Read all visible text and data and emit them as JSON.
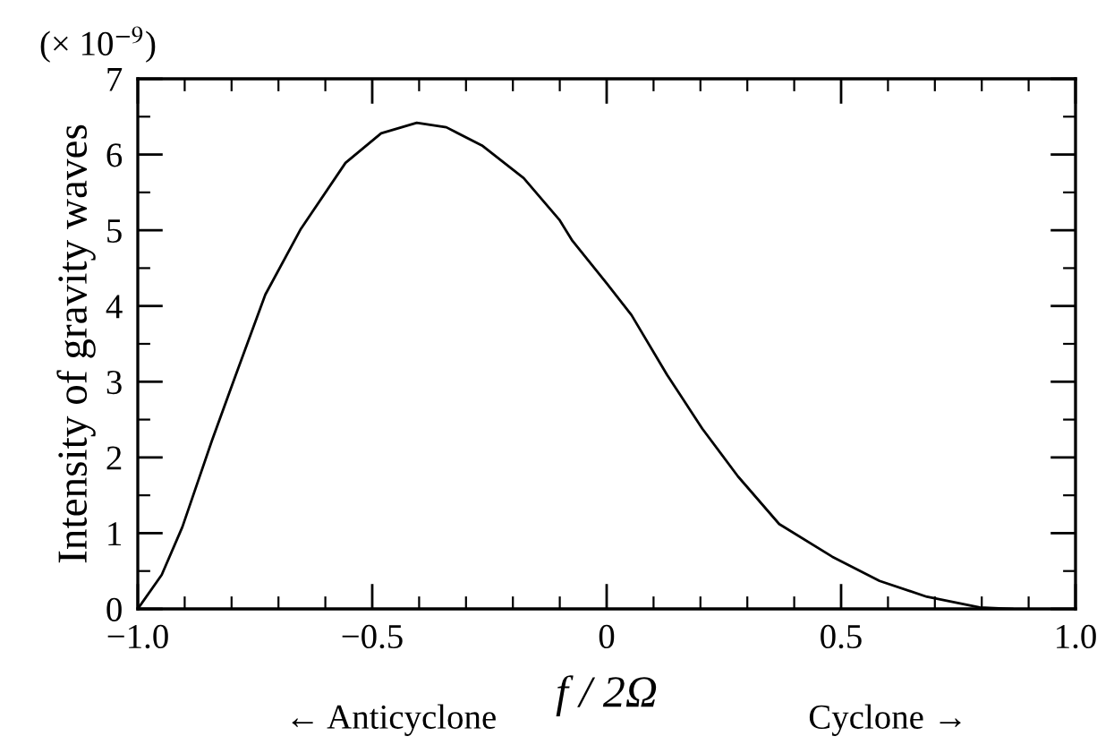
{
  "chart_data": {
    "type": "line",
    "ylabel": "Intensity of gravity waves",
    "xlabel": "f / 2Ω",
    "annotations": [
      "(× 10$^{−9}$)",
      "← Anticyclone",
      "Cyclone →"
    ],
    "series": [
      {
        "color": "#000000",
        "x": [
          -1.0,
          -0.949,
          -0.905,
          -0.842,
          -0.791,
          -0.728,
          -0.652,
          -0.557,
          -0.481,
          -0.405,
          -0.342,
          -0.266,
          -0.177,
          -0.101,
          -0.073,
          0.0,
          0.053,
          0.129,
          0.204,
          0.28,
          0.368,
          0.481,
          0.582,
          0.683,
          0.796,
          0.865
        ],
        "values": [
          0,
          0.45,
          1.08,
          2.22,
          3.09,
          4.15,
          5.02,
          5.89,
          6.28,
          6.42,
          6.36,
          6.12,
          5.69,
          5.14,
          4.86,
          4.3,
          3.88,
          3.09,
          2.38,
          1.75,
          1.12,
          0.69,
          0.37,
          0.16,
          0.02,
          0.0
        ]
      }
    ],
    "xlim": [
      -1.0,
      1.0
    ],
    "ylim": [
      0,
      7
    ],
    "xticks": [
      {
        "value": -1.0,
        "label": "−1.0"
      },
      {
        "value": -0.9,
        "label": null
      },
      {
        "value": -0.8,
        "label": null
      },
      {
        "value": -0.7,
        "label": null
      },
      {
        "value": -0.6,
        "label": null
      },
      {
        "value": -0.5,
        "label": "−0.5"
      },
      {
        "value": -0.4,
        "label": null
      },
      {
        "value": -0.3,
        "label": null
      },
      {
        "value": -0.2,
        "label": null
      },
      {
        "value": -0.1,
        "label": null
      },
      0,
      {
        "value": 0.1,
        "label": null
      },
      {
        "value": 0.2,
        "label": null
      },
      {
        "value": 0.3,
        "label": null
      },
      {
        "value": 0.4,
        "label": null
      },
      0.5,
      {
        "value": 0.6,
        "label": null
      },
      {
        "value": 0.7,
        "label": null
      },
      {
        "value": 0.8,
        "label": null
      },
      {
        "value": 0.9,
        "label": null
      },
      {
        "value": 1.0,
        "label": "1.0"
      }
    ],
    "yticks": [
      0,
      {
        "value": 0.5,
        "label": null
      },
      1,
      {
        "value": 1.5,
        "label": null
      },
      2,
      {
        "value": 2.5,
        "label": null
      },
      3,
      {
        "value": 3.5,
        "label": null
      },
      4,
      {
        "value": 4.5,
        "label": null
      },
      5,
      {
        "value": 5.5,
        "label": null
      },
      6,
      {
        "value": 6.5,
        "label": null
      },
      7
    ],
    "grid": false,
    "legend": false,
    "marker": "none",
    "line_style": "solid"
  }
}
